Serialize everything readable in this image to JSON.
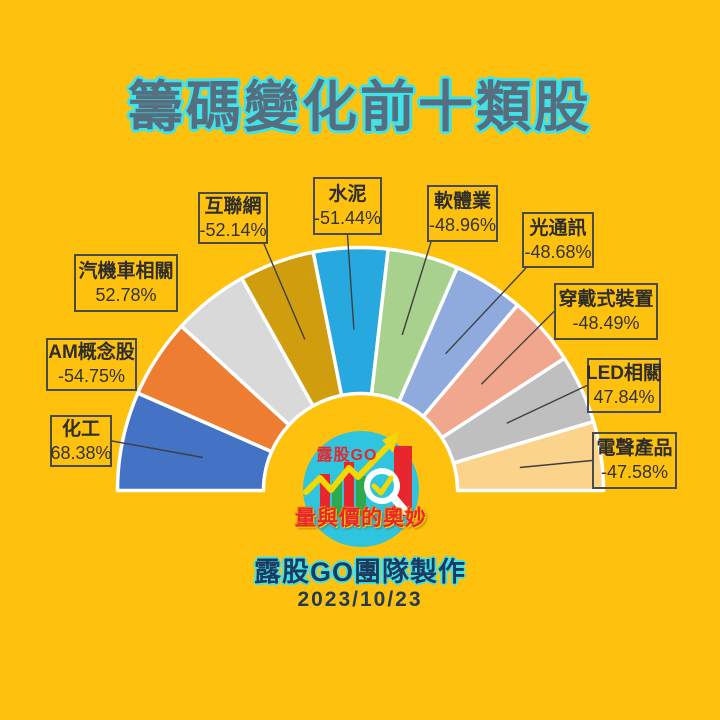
{
  "chart_data": {
    "type": "pie",
    "variant": "half-donut-fan",
    "title": "籌碼變化前十類股",
    "angle_span_deg": 180,
    "slice_sizing": "proportional-to-abs-value",
    "unit": "%",
    "legend_position": "callout-labels",
    "segments": [
      {
        "label": "化工",
        "value": 68.38,
        "color": "#4472C4"
      },
      {
        "label": "AM概念股",
        "value": -54.75,
        "color": "#ED7D31"
      },
      {
        "label": "汽機車相關",
        "value": 52.78,
        "color": "#D9D9D9"
      },
      {
        "label": "互聯網",
        "value": -52.14,
        "color": "#D09D0E"
      },
      {
        "label": "水泥",
        "value": -51.44,
        "color": "#27A9E0"
      },
      {
        "label": "軟體業",
        "value": -48.96,
        "color": "#A9D18E"
      },
      {
        "label": "光通訊",
        "value": -48.68,
        "color": "#8FAADC"
      },
      {
        "label": "穿戴式裝置",
        "value": -48.49,
        "color": "#F0A78E"
      },
      {
        "label": "LED相關",
        "value": 47.84,
        "color": "#BFBFBF"
      },
      {
        "label": "電聲產品",
        "value": -47.58,
        "color": "#FBD38A"
      }
    ]
  },
  "logo": {
    "brand": "露股GO",
    "tagline": "量與價的奧妙"
  },
  "footer": {
    "credit": "露股GO團隊製作",
    "date": "2023/10/23"
  },
  "colors": {
    "background": "#FEC10D",
    "title_fill": "#566F80",
    "title_outline": "#3FE3EA",
    "label_border": "#4A4A4A",
    "label_text": "#2D2D2D",
    "leader_line": "#3F3F3F",
    "credit_text": "#1E3A5F",
    "date_text": "#233A56",
    "logo_circle": "#2FC5DF",
    "logo_red": "#E8262D",
    "logo_green": "#2DA94F",
    "logo_yellow": "#F5D800"
  }
}
